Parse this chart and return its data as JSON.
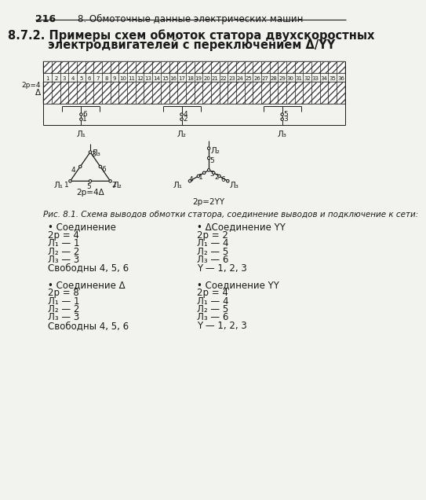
{
  "page_number": "216",
  "header_text": "8. Обмоточные данные электрических машин",
  "title_line1": "8.7.2. Примеры схем обмоток статора двухскоростных",
  "title_line2": "электродвигателей с переключением Δ/YY",
  "slots": 36,
  "slot_numbers": [
    "1",
    "2",
    "3",
    "4",
    "5",
    "6",
    "7",
    "8",
    "9",
    "10",
    "11",
    "12",
    "13",
    "14",
    "15",
    "16",
    "17",
    "18",
    "19",
    "20",
    "21",
    "22",
    "23",
    "24",
    "25",
    "26",
    "27",
    "28",
    "29",
    "30",
    "31",
    "32",
    "33",
    "34",
    "35",
    "36"
  ],
  "fig_caption": "Рис. 8.1. Схема выводов обмотки статора, соединение выводов и подключение к сети:",
  "diagram1_label": "2p=4Δ",
  "diagram2_label": "2p=2YY",
  "col1_header": "• Соединение",
  "col2_header": "• ΔСоединение YY",
  "col1_block1": [
    "2p = 4",
    "Л₁ — 1",
    "Л₂ — 2",
    "Л₃ — 3",
    "Свободны 4, 5, 6"
  ],
  "col2_block1": [
    "2p = 2",
    "Л₁ — 4",
    "Л₂ — 5",
    "Л₃ — 6",
    "Y — 1, 2, 3"
  ],
  "col1_header2": "• Соединение Δ",
  "col2_header2": "• Соединение YY",
  "col1_block2": [
    "2p = 8",
    "Л₁ — 1",
    "Л₂ — 2",
    "Л₃ — 3",
    "Свободны 4, 5, 6"
  ],
  "col2_block2": [
    "2p = 4",
    "Л₁ — 4",
    "Л₂ — 5",
    "Л₃ — 6",
    "Y — 1, 2, 3"
  ],
  "bg_color": "#f2f2ee",
  "hatch_color": "#444444",
  "line_color": "#1a1a1a"
}
